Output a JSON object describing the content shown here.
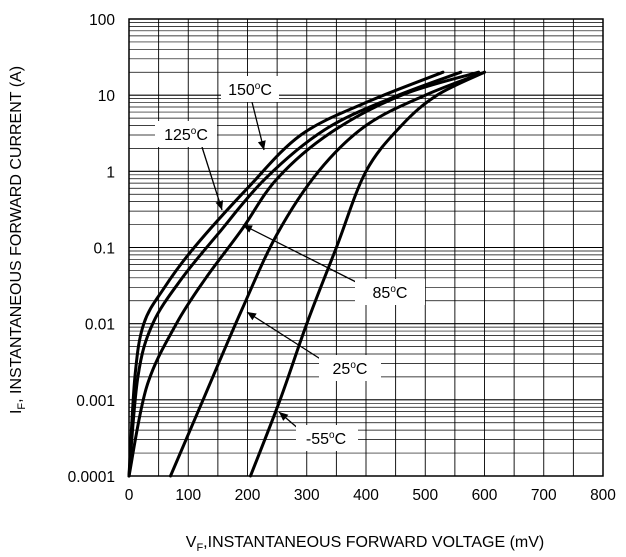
{
  "chart_data": {
    "type": "line",
    "title": "",
    "xlabel": {
      "pre": "V",
      "sub": "F",
      "post": ",INSTANTANEOUS FORWARD VOLTAGE (mV)"
    },
    "ylabel": {
      "pre": "I",
      "sub": "F",
      "post": ", INSTANTANEOUS FORWARD CURRENT (A)"
    },
    "xlim": [
      0,
      800
    ],
    "ylim": [
      0.0001,
      100
    ],
    "yscale": "log",
    "grid": true,
    "x_ticks": [
      "0",
      "100",
      "200",
      "300",
      "400",
      "500",
      "600",
      "700",
      "800"
    ],
    "y_ticks": [
      "0.0001",
      "0.001",
      "0.01",
      "0.1",
      "1",
      "10",
      "100"
    ],
    "series": [
      {
        "label": {
          "num": "150",
          "sup": "o",
          "unit": "C"
        },
        "points": [
          [
            0,
            0.0001
          ],
          [
            10,
            0.002
          ],
          [
            25,
            0.01
          ],
          [
            60,
            0.03
          ],
          [
            110,
            0.1
          ],
          [
            200,
            0.6
          ],
          [
            290,
            3
          ],
          [
            400,
            8
          ],
          [
            530,
            20
          ]
        ]
      },
      {
        "label": {
          "num": "125",
          "sup": "o",
          "unit": "C"
        },
        "points": [
          [
            0,
            0.0001
          ],
          [
            15,
            0.002
          ],
          [
            40,
            0.01
          ],
          [
            90,
            0.04
          ],
          [
            150,
            0.15
          ],
          [
            230,
            0.8
          ],
          [
            330,
            3.5
          ],
          [
            440,
            9
          ],
          [
            560,
            20
          ]
        ]
      },
      {
        "label": {
          "num": "85",
          "sup": "o",
          "unit": "C"
        },
        "points": [
          [
            0,
            0.0001
          ],
          [
            30,
            0.0015
          ],
          [
            80,
            0.01
          ],
          [
            130,
            0.04
          ],
          [
            190,
            0.17
          ],
          [
            250,
            0.8
          ],
          [
            340,
            3.2
          ],
          [
            460,
            10
          ],
          [
            590,
            20
          ]
        ]
      },
      {
        "label": {
          "num": "25",
          "sup": "o",
          "unit": "C"
        },
        "points": [
          [
            70,
            0.0001
          ],
          [
            125,
            0.001
          ],
          [
            190,
            0.015
          ],
          [
            250,
            0.15
          ],
          [
            320,
            1
          ],
          [
            400,
            4
          ],
          [
            500,
            10
          ],
          [
            600,
            20
          ]
        ]
      },
      {
        "label": {
          "num": "-55",
          "sup": "o",
          "unit": "C"
        },
        "points": [
          [
            205,
            0.0001
          ],
          [
            255,
            0.001
          ],
          [
            300,
            0.01
          ],
          [
            350,
            0.1
          ],
          [
            400,
            1
          ],
          [
            460,
            4
          ],
          [
            520,
            10
          ],
          [
            600,
            20
          ]
        ]
      }
    ]
  }
}
